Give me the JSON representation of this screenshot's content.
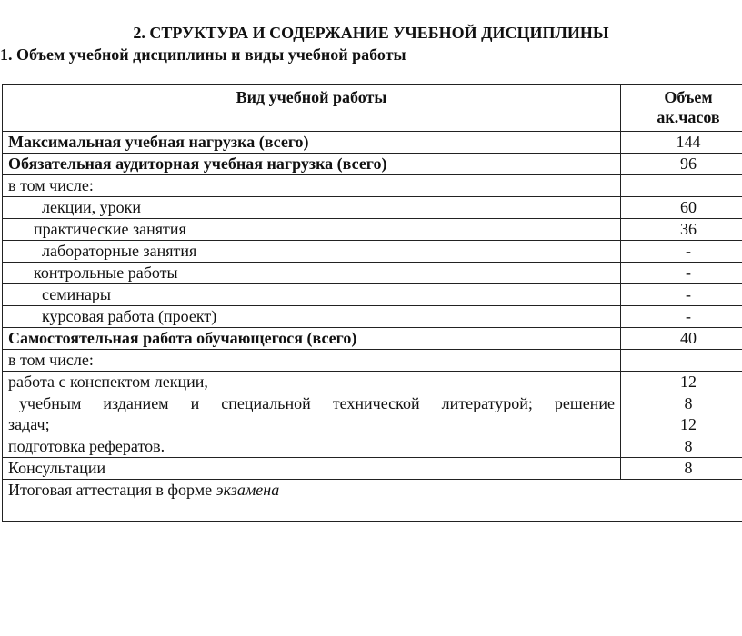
{
  "heading": "2. СТРУКТУРА И СОДЕРЖАНИЕ УЧЕБНОЙ ДИСЦИПЛИНЫ",
  "subheading": "1. Объем учебной дисциплины и виды учебной работы",
  "table": {
    "header": {
      "col1": "Вид учебной работы",
      "col2_line1": "Объем",
      "col2_line2": "ак.часов"
    },
    "rows": [
      {
        "label": "Максимальная учебная нагрузка (всего)",
        "value": "144"
      },
      {
        "label": "Обязательная аудиторная учебная нагрузка (всего)",
        "value": "96"
      },
      {
        "label": "в том числе:",
        "value": ""
      },
      {
        "label": "лекции, уроки",
        "value": "60"
      },
      {
        "label": "практические занятия",
        "value": "36"
      },
      {
        "label": "лабораторные занятия",
        "value": "-"
      },
      {
        "label": "контрольные работы",
        "value": "-"
      },
      {
        "label": "семинары",
        "value": "-"
      },
      {
        "label": "курсовая работа (проект)",
        "value": "-"
      },
      {
        "label": "Самостоятельная работа обучающегося (всего)",
        "value": "40"
      },
      {
        "label": "в том числе:",
        "value": ""
      }
    ],
    "multi": {
      "lines": [
        "работа с конспектом  лекции,",
        " учебным  изданием  и  специальной  технической  литературой;  решение",
        "задач;",
        "подготовка рефератов."
      ],
      "values": [
        "12",
        "8",
        "12",
        "8"
      ]
    },
    "consult": {
      "label": "Консультации",
      "value": "8"
    },
    "final": {
      "label": "Итоговая аттестация в форме ",
      "emphasis": "экзамена"
    }
  }
}
